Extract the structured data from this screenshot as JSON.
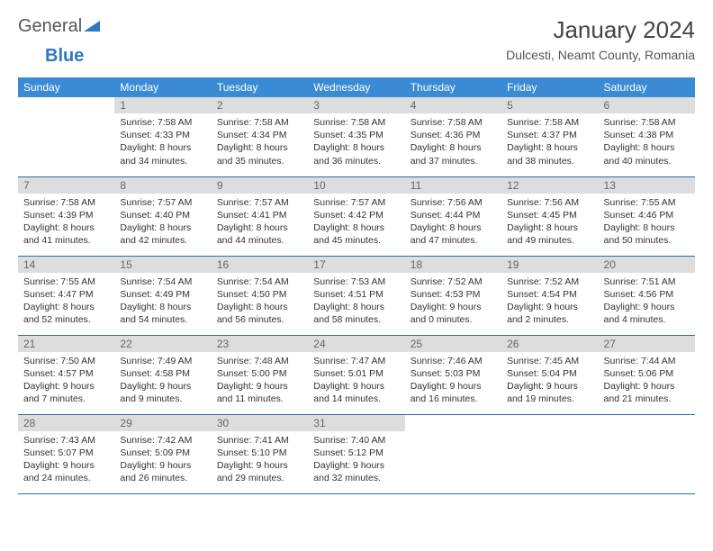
{
  "logo": {
    "text1": "General",
    "text2": "Blue"
  },
  "title": "January 2024",
  "location": "Dulcesti, Neamt County, Romania",
  "colors": {
    "header_bg": "#3b8bd4",
    "header_text": "#ffffff",
    "daynum_bg": "#dddddd",
    "row_border": "#2b6ca8",
    "logo_accent": "#2b78c4"
  },
  "dayNames": [
    "Sunday",
    "Monday",
    "Tuesday",
    "Wednesday",
    "Thursday",
    "Friday",
    "Saturday"
  ],
  "weeks": [
    [
      {
        "num": "",
        "lines": []
      },
      {
        "num": "1",
        "lines": [
          "Sunrise: 7:58 AM",
          "Sunset: 4:33 PM",
          "Daylight: 8 hours",
          "and 34 minutes."
        ]
      },
      {
        "num": "2",
        "lines": [
          "Sunrise: 7:58 AM",
          "Sunset: 4:34 PM",
          "Daylight: 8 hours",
          "and 35 minutes."
        ]
      },
      {
        "num": "3",
        "lines": [
          "Sunrise: 7:58 AM",
          "Sunset: 4:35 PM",
          "Daylight: 8 hours",
          "and 36 minutes."
        ]
      },
      {
        "num": "4",
        "lines": [
          "Sunrise: 7:58 AM",
          "Sunset: 4:36 PM",
          "Daylight: 8 hours",
          "and 37 minutes."
        ]
      },
      {
        "num": "5",
        "lines": [
          "Sunrise: 7:58 AM",
          "Sunset: 4:37 PM",
          "Daylight: 8 hours",
          "and 38 minutes."
        ]
      },
      {
        "num": "6",
        "lines": [
          "Sunrise: 7:58 AM",
          "Sunset: 4:38 PM",
          "Daylight: 8 hours",
          "and 40 minutes."
        ]
      }
    ],
    [
      {
        "num": "7",
        "lines": [
          "Sunrise: 7:58 AM",
          "Sunset: 4:39 PM",
          "Daylight: 8 hours",
          "and 41 minutes."
        ]
      },
      {
        "num": "8",
        "lines": [
          "Sunrise: 7:57 AM",
          "Sunset: 4:40 PM",
          "Daylight: 8 hours",
          "and 42 minutes."
        ]
      },
      {
        "num": "9",
        "lines": [
          "Sunrise: 7:57 AM",
          "Sunset: 4:41 PM",
          "Daylight: 8 hours",
          "and 44 minutes."
        ]
      },
      {
        "num": "10",
        "lines": [
          "Sunrise: 7:57 AM",
          "Sunset: 4:42 PM",
          "Daylight: 8 hours",
          "and 45 minutes."
        ]
      },
      {
        "num": "11",
        "lines": [
          "Sunrise: 7:56 AM",
          "Sunset: 4:44 PM",
          "Daylight: 8 hours",
          "and 47 minutes."
        ]
      },
      {
        "num": "12",
        "lines": [
          "Sunrise: 7:56 AM",
          "Sunset: 4:45 PM",
          "Daylight: 8 hours",
          "and 49 minutes."
        ]
      },
      {
        "num": "13",
        "lines": [
          "Sunrise: 7:55 AM",
          "Sunset: 4:46 PM",
          "Daylight: 8 hours",
          "and 50 minutes."
        ]
      }
    ],
    [
      {
        "num": "14",
        "lines": [
          "Sunrise: 7:55 AM",
          "Sunset: 4:47 PM",
          "Daylight: 8 hours",
          "and 52 minutes."
        ]
      },
      {
        "num": "15",
        "lines": [
          "Sunrise: 7:54 AM",
          "Sunset: 4:49 PM",
          "Daylight: 8 hours",
          "and 54 minutes."
        ]
      },
      {
        "num": "16",
        "lines": [
          "Sunrise: 7:54 AM",
          "Sunset: 4:50 PM",
          "Daylight: 8 hours",
          "and 56 minutes."
        ]
      },
      {
        "num": "17",
        "lines": [
          "Sunrise: 7:53 AM",
          "Sunset: 4:51 PM",
          "Daylight: 8 hours",
          "and 58 minutes."
        ]
      },
      {
        "num": "18",
        "lines": [
          "Sunrise: 7:52 AM",
          "Sunset: 4:53 PM",
          "Daylight: 9 hours",
          "and 0 minutes."
        ]
      },
      {
        "num": "19",
        "lines": [
          "Sunrise: 7:52 AM",
          "Sunset: 4:54 PM",
          "Daylight: 9 hours",
          "and 2 minutes."
        ]
      },
      {
        "num": "20",
        "lines": [
          "Sunrise: 7:51 AM",
          "Sunset: 4:56 PM",
          "Daylight: 9 hours",
          "and 4 minutes."
        ]
      }
    ],
    [
      {
        "num": "21",
        "lines": [
          "Sunrise: 7:50 AM",
          "Sunset: 4:57 PM",
          "Daylight: 9 hours",
          "and 7 minutes."
        ]
      },
      {
        "num": "22",
        "lines": [
          "Sunrise: 7:49 AM",
          "Sunset: 4:58 PM",
          "Daylight: 9 hours",
          "and 9 minutes."
        ]
      },
      {
        "num": "23",
        "lines": [
          "Sunrise: 7:48 AM",
          "Sunset: 5:00 PM",
          "Daylight: 9 hours",
          "and 11 minutes."
        ]
      },
      {
        "num": "24",
        "lines": [
          "Sunrise: 7:47 AM",
          "Sunset: 5:01 PM",
          "Daylight: 9 hours",
          "and 14 minutes."
        ]
      },
      {
        "num": "25",
        "lines": [
          "Sunrise: 7:46 AM",
          "Sunset: 5:03 PM",
          "Daylight: 9 hours",
          "and 16 minutes."
        ]
      },
      {
        "num": "26",
        "lines": [
          "Sunrise: 7:45 AM",
          "Sunset: 5:04 PM",
          "Daylight: 9 hours",
          "and 19 minutes."
        ]
      },
      {
        "num": "27",
        "lines": [
          "Sunrise: 7:44 AM",
          "Sunset: 5:06 PM",
          "Daylight: 9 hours",
          "and 21 minutes."
        ]
      }
    ],
    [
      {
        "num": "28",
        "lines": [
          "Sunrise: 7:43 AM",
          "Sunset: 5:07 PM",
          "Daylight: 9 hours",
          "and 24 minutes."
        ]
      },
      {
        "num": "29",
        "lines": [
          "Sunrise: 7:42 AM",
          "Sunset: 5:09 PM",
          "Daylight: 9 hours",
          "and 26 minutes."
        ]
      },
      {
        "num": "30",
        "lines": [
          "Sunrise: 7:41 AM",
          "Sunset: 5:10 PM",
          "Daylight: 9 hours",
          "and 29 minutes."
        ]
      },
      {
        "num": "31",
        "lines": [
          "Sunrise: 7:40 AM",
          "Sunset: 5:12 PM",
          "Daylight: 9 hours",
          "and 32 minutes."
        ]
      },
      {
        "num": "",
        "lines": []
      },
      {
        "num": "",
        "lines": []
      },
      {
        "num": "",
        "lines": []
      }
    ]
  ]
}
